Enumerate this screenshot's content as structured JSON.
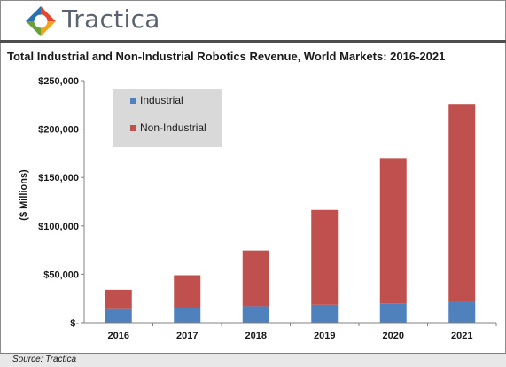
{
  "brand": {
    "name": "Tractica"
  },
  "footer": {
    "source": "Source: Tractica"
  },
  "colors": {
    "industrial": "#4f81bd",
    "non_industrial": "#c0504d",
    "legend_bg": "#d9d9d9"
  },
  "chart_data": {
    "type": "bar",
    "stacked": true,
    "title": "Total Industrial and Non-Industrial Robotics Revenue, World Markets: 2016-2021",
    "ylabel": "($ Millions)",
    "xlabel": "",
    "categories": [
      "2016",
      "2017",
      "2018",
      "2019",
      "2020",
      "2021"
    ],
    "series": [
      {
        "name": "Industrial",
        "values": [
          14000,
          15500,
          17000,
          18500,
          20000,
          22000
        ]
      },
      {
        "name": "Non-Industrial",
        "values": [
          20000,
          33500,
          57500,
          98000,
          150000,
          204000
        ]
      }
    ],
    "ylim": [
      0,
      250000
    ],
    "yticks": [
      {
        "value": 0,
        "label": "$-"
      },
      {
        "value": 50000,
        "label": "$50,000"
      },
      {
        "value": 100000,
        "label": "$100,000"
      },
      {
        "value": 150000,
        "label": "$150,000"
      },
      {
        "value": 200000,
        "label": "$200,000"
      },
      {
        "value": 250000,
        "label": "$250,000"
      }
    ],
    "grid": false,
    "legend_position": "top-left"
  }
}
